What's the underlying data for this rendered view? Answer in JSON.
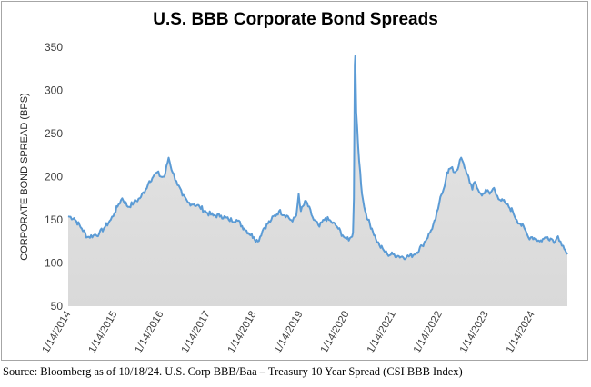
{
  "chart_data": {
    "type": "area",
    "title": "U.S. BBB Corporate Bond Spreads",
    "xlabel": "",
    "ylabel": "CORPORATE BOND SPREAD (BPS)",
    "ylim": [
      50,
      350
    ],
    "yticks": [
      50,
      100,
      150,
      200,
      250,
      300,
      350
    ],
    "xlim": [
      "2014-01-14",
      "2024-10-18"
    ],
    "xticks": [
      "1/14/2014",
      "1/14/2015",
      "1/14/2016",
      "1/14/2017",
      "1/14/2018",
      "1/14/2019",
      "1/14/2020",
      "1/14/2021",
      "1/14/2022",
      "1/14/2023",
      "1/14/2024"
    ],
    "grid": false,
    "legend": "none",
    "colors": {
      "line": "#5b9bd5",
      "fill": "#d9d9d9"
    },
    "series": [
      {
        "x": [
          "2014-01-14",
          "2014-03-01",
          "2014-05-01",
          "2014-06-15",
          "2014-08-01",
          "2014-09-15",
          "2014-11-01",
          "2014-12-15",
          "2015-01-14",
          "2015-02-15",
          "2015-03-15",
          "2015-05-01",
          "2015-06-15",
          "2015-08-01",
          "2015-09-15",
          "2015-10-15",
          "2015-11-15",
          "2015-12-15",
          "2016-01-14",
          "2016-02-11",
          "2016-03-15",
          "2016-04-15",
          "2016-05-15",
          "2016-07-01",
          "2016-08-15",
          "2016-10-01",
          "2016-11-15",
          "2017-01-14",
          "2017-03-01",
          "2017-05-01",
          "2017-07-01",
          "2017-09-01",
          "2017-11-01",
          "2018-01-14",
          "2018-02-15",
          "2018-04-01",
          "2018-06-01",
          "2018-08-01",
          "2018-10-01",
          "2018-11-15",
          "2018-12-15",
          "2019-01-03",
          "2019-01-20",
          "2019-03-01",
          "2019-05-01",
          "2019-06-15",
          "2019-08-01",
          "2019-09-15",
          "2019-11-01",
          "2019-12-15",
          "2020-01-14",
          "2020-02-01",
          "2020-02-20",
          "2020-03-05",
          "2020-03-12",
          "2020-03-19",
          "2020-03-23",
          "2020-03-31",
          "2020-04-15",
          "2020-05-01",
          "2020-05-15",
          "2020-06-01",
          "2020-06-15",
          "2020-07-01",
          "2020-08-01",
          "2020-09-01",
          "2020-10-01",
          "2020-11-01",
          "2020-12-01",
          "2021-01-14",
          "2021-03-01",
          "2021-05-01",
          "2021-07-01",
          "2021-09-01",
          "2021-11-01",
          "2021-12-15",
          "2022-01-14",
          "2022-02-15",
          "2022-03-15",
          "2022-04-15",
          "2022-05-15",
          "2022-06-15",
          "2022-07-05",
          "2022-08-01",
          "2022-09-01",
          "2022-10-01",
          "2022-10-20",
          "2022-11-15",
          "2022-12-15",
          "2023-01-14",
          "2023-02-15",
          "2023-03-20",
          "2023-04-15",
          "2023-05-15",
          "2023-06-15",
          "2023-07-15",
          "2023-08-15",
          "2023-09-15",
          "2023-10-15",
          "2023-11-15",
          "2023-12-15",
          "2024-01-14",
          "2024-02-15",
          "2024-03-15",
          "2024-04-15",
          "2024-05-15",
          "2024-06-15",
          "2024-07-15",
          "2024-08-05",
          "2024-08-25",
          "2024-09-15",
          "2024-10-01",
          "2024-10-18"
        ],
        "values": [
          154,
          152,
          140,
          130,
          132,
          134,
          142,
          150,
          158,
          168,
          175,
          165,
          170,
          175,
          185,
          195,
          200,
          205,
          200,
          200,
          222,
          205,
          195,
          178,
          170,
          168,
          165,
          158,
          155,
          155,
          150,
          150,
          140,
          130,
          125,
          140,
          150,
          160,
          155,
          148,
          155,
          180,
          160,
          172,
          150,
          142,
          152,
          148,
          142,
          132,
          128,
          126,
          130,
          135,
          175,
          330,
          340,
          275,
          235,
          205,
          180,
          165,
          158,
          150,
          140,
          128,
          120,
          115,
          110,
          110,
          108,
          107,
          110,
          120,
          135,
          150,
          170,
          185,
          205,
          210,
          205,
          212,
          222,
          210,
          200,
          185,
          194,
          185,
          178,
          185,
          180,
          187,
          178,
          172,
          170,
          165,
          160,
          150,
          145,
          140,
          130,
          130,
          128,
          125,
          128,
          130,
          128,
          125,
          131,
          125,
          120,
          115,
          110
        ]
      }
    ]
  },
  "source_note": "Source:  Bloomberg as of 10/18/24. U.S. Corp BBB/Baa – Treasury 10 Year Spread  (CSI BBB Index)"
}
